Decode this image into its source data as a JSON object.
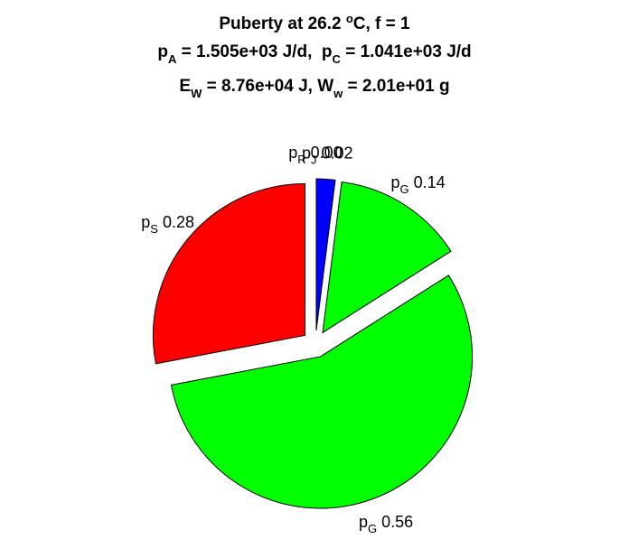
{
  "title": {
    "line1": {
      "a": "Puberty at 26.2 ",
      "sup": "o",
      "b": "C, f = 1"
    },
    "line2": {
      "p1": "p",
      "p1_sub": "A",
      "p1_rest": " = 1.505e+03 J/d,  ",
      "p2": "p",
      "p2_sub": "C",
      "p2_rest": " = 1.041e+03 J/d"
    },
    "line3": {
      "e": "E",
      "e_sub": "W",
      "e_rest": " = 8.76e+04 J, ",
      "w": "W",
      "w_sub": "w",
      "w_rest": " = 2.01e+01 g"
    }
  },
  "chart_data": {
    "type": "pie",
    "direction": "clockwise",
    "start": "top",
    "explode": "all",
    "slices": [
      {
        "sym": "p",
        "sub": "J",
        "value": 0.02,
        "display": "0.02",
        "color": "#0000ff"
      },
      {
        "sym": "p",
        "sub": "G",
        "value": 0.14,
        "display": "0.14",
        "color": "#00ff00"
      },
      {
        "sym": "p",
        "sub": "G",
        "value": 0.56,
        "display": "0.56",
        "color": "#00ff00"
      },
      {
        "sym": "p",
        "sub": "S",
        "value": 0.28,
        "display": "0.28",
        "color": "#ff0000"
      },
      {
        "sym": "p",
        "sub": "R",
        "value": 0.0,
        "display": "0.00",
        "color": "#ffff00"
      }
    ]
  }
}
